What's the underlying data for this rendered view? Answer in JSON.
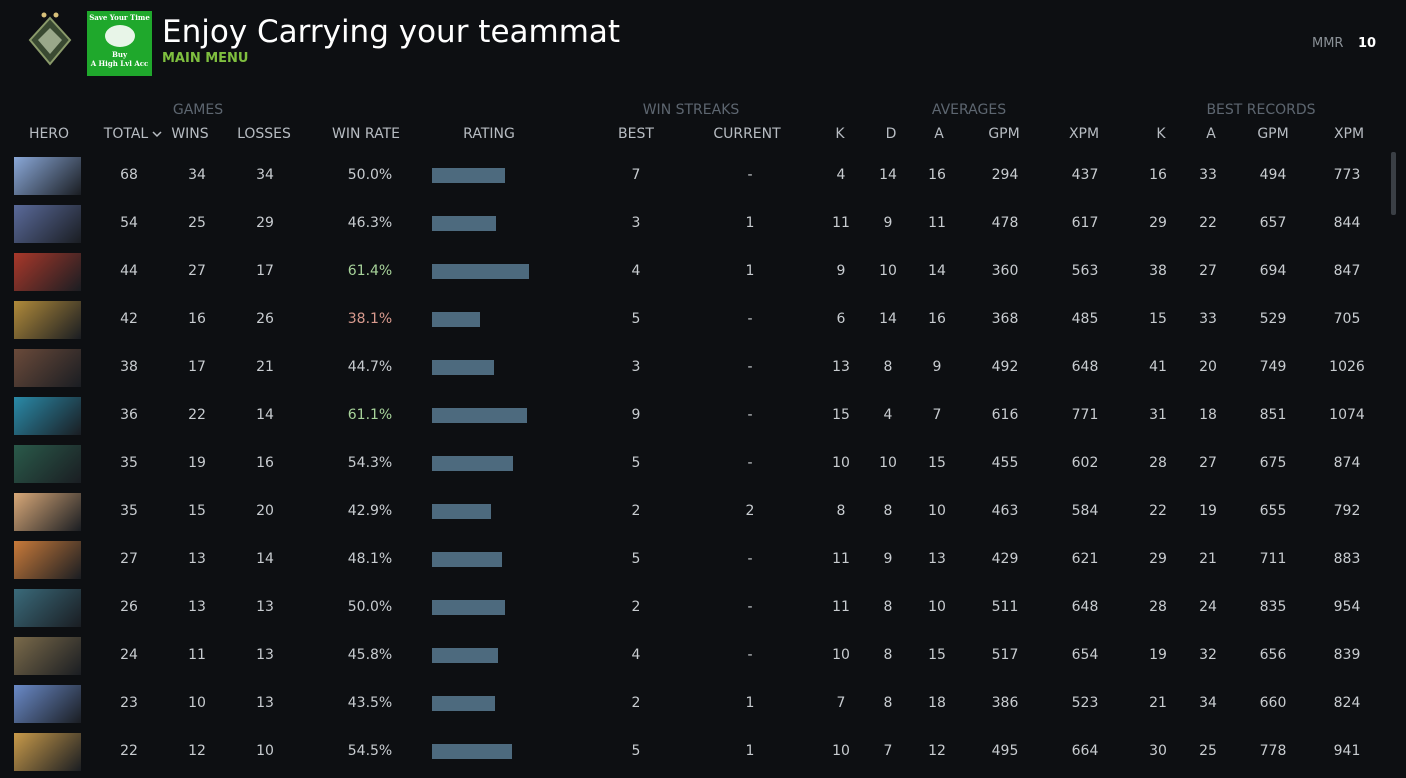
{
  "header": {
    "badge": {
      "line1": "Save Your Time",
      "line2": "Buy",
      "line3": "A High Lvl Acc"
    },
    "title": "Enjoy Carrying your teammat",
    "subtitle": "MAIN MENU",
    "mmr_label": "MMR",
    "mmr_value": "10"
  },
  "table": {
    "groups": [
      {
        "label": "GAMES",
        "x": 198
      },
      {
        "label": "WIN STREAKS",
        "x": 691
      },
      {
        "label": "AVERAGES",
        "x": 969
      },
      {
        "label": "BEST RECORDS",
        "x": 1261
      }
    ],
    "columns": [
      {
        "key": "hero",
        "label": "HERO"
      },
      {
        "key": "total",
        "label": "TOTAL"
      },
      {
        "key": "wins",
        "label": "WINS"
      },
      {
        "key": "losses",
        "label": "LOSSES"
      },
      {
        "key": "win_rate",
        "label": "WIN RATE"
      },
      {
        "key": "rating",
        "label": "RATING"
      },
      {
        "key": "best",
        "label": "BEST"
      },
      {
        "key": "current",
        "label": "CURRENT"
      },
      {
        "key": "k",
        "label": "K"
      },
      {
        "key": "d",
        "label": "D"
      },
      {
        "key": "a",
        "label": "A"
      },
      {
        "key": "gpm",
        "label": "GPM"
      },
      {
        "key": "xpm",
        "label": "XPM"
      },
      {
        "key": "best_k",
        "label": "K"
      },
      {
        "key": "best_a",
        "label": "A"
      },
      {
        "key": "best_gpm",
        "label": "GPM"
      },
      {
        "key": "best_xpm",
        "label": "XPM"
      }
    ],
    "rows": [
      {
        "total": 68,
        "wins": 34,
        "losses": 34,
        "win_rate": "50.0%",
        "win_rate_color": "#c8ccd0",
        "rating": 73,
        "best": 7,
        "current": "-",
        "k": 4,
        "d": 14,
        "a": 16,
        "gpm": 294,
        "xpm": 437,
        "best_k": 16,
        "best_a": 33,
        "best_gpm": 494,
        "best_xpm": 773
      },
      {
        "total": 54,
        "wins": 25,
        "losses": 29,
        "win_rate": "46.3%",
        "win_rate_color": "#c8ccd0",
        "rating": 64,
        "best": 3,
        "current": 1,
        "k": 11,
        "d": 9,
        "a": 11,
        "gpm": 478,
        "xpm": 617,
        "best_k": 29,
        "best_a": 22,
        "best_gpm": 657,
        "best_xpm": 844
      },
      {
        "total": 44,
        "wins": 27,
        "losses": 17,
        "win_rate": "61.4%",
        "win_rate_color": "#a7d39a",
        "rating": 97,
        "best": 4,
        "current": 1,
        "k": 9,
        "d": 10,
        "a": 14,
        "gpm": 360,
        "xpm": 563,
        "best_k": 38,
        "best_a": 27,
        "best_gpm": 694,
        "best_xpm": 847
      },
      {
        "total": 42,
        "wins": 16,
        "losses": 26,
        "win_rate": "38.1%",
        "win_rate_color": "#d89a8e",
        "rating": 48,
        "best": 5,
        "current": "-",
        "k": 6,
        "d": 14,
        "a": 16,
        "gpm": 368,
        "xpm": 485,
        "best_k": 15,
        "best_a": 33,
        "best_gpm": 529,
        "best_xpm": 705
      },
      {
        "total": 38,
        "wins": 17,
        "losses": 21,
        "win_rate": "44.7%",
        "win_rate_color": "#c8ccd0",
        "rating": 62,
        "best": 3,
        "current": "-",
        "k": 13,
        "d": 8,
        "a": 9,
        "gpm": 492,
        "xpm": 648,
        "best_k": 41,
        "best_a": 20,
        "best_gpm": 749,
        "best_xpm": 1026
      },
      {
        "total": 36,
        "wins": 22,
        "losses": 14,
        "win_rate": "61.1%",
        "win_rate_color": "#a7d39a",
        "rating": 95,
        "best": 9,
        "current": "-",
        "k": 15,
        "d": 4,
        "a": 7,
        "gpm": 616,
        "xpm": 771,
        "best_k": 31,
        "best_a": 18,
        "best_gpm": 851,
        "best_xpm": 1074
      },
      {
        "total": 35,
        "wins": 19,
        "losses": 16,
        "win_rate": "54.3%",
        "win_rate_color": "#c8ccd0",
        "rating": 81,
        "best": 5,
        "current": "-",
        "k": 10,
        "d": 10,
        "a": 15,
        "gpm": 455,
        "xpm": 602,
        "best_k": 28,
        "best_a": 27,
        "best_gpm": 675,
        "best_xpm": 874
      },
      {
        "total": 35,
        "wins": 15,
        "losses": 20,
        "win_rate": "42.9%",
        "win_rate_color": "#c8ccd0",
        "rating": 59,
        "best": 2,
        "current": 2,
        "k": 8,
        "d": 8,
        "a": 10,
        "gpm": 463,
        "xpm": 584,
        "best_k": 22,
        "best_a": 19,
        "best_gpm": 655,
        "best_xpm": 792
      },
      {
        "total": 27,
        "wins": 13,
        "losses": 14,
        "win_rate": "48.1%",
        "win_rate_color": "#c8ccd0",
        "rating": 70,
        "best": 5,
        "current": "-",
        "k": 11,
        "d": 9,
        "a": 13,
        "gpm": 429,
        "xpm": 621,
        "best_k": 29,
        "best_a": 21,
        "best_gpm": 711,
        "best_xpm": 883
      },
      {
        "total": 26,
        "wins": 13,
        "losses": 13,
        "win_rate": "50.0%",
        "win_rate_color": "#c8ccd0",
        "rating": 73,
        "best": 2,
        "current": "-",
        "k": 11,
        "d": 8,
        "a": 10,
        "gpm": 511,
        "xpm": 648,
        "best_k": 28,
        "best_a": 24,
        "best_gpm": 835,
        "best_xpm": 954
      },
      {
        "total": 24,
        "wins": 11,
        "losses": 13,
        "win_rate": "45.8%",
        "win_rate_color": "#c8ccd0",
        "rating": 66,
        "best": 4,
        "current": "-",
        "k": 10,
        "d": 8,
        "a": 15,
        "gpm": 517,
        "xpm": 654,
        "best_k": 19,
        "best_a": 32,
        "best_gpm": 656,
        "best_xpm": 839
      },
      {
        "total": 23,
        "wins": 10,
        "losses": 13,
        "win_rate": "43.5%",
        "win_rate_color": "#c8ccd0",
        "rating": 63,
        "best": 2,
        "current": 1,
        "k": 7,
        "d": 8,
        "a": 18,
        "gpm": 386,
        "xpm": 523,
        "best_k": 21,
        "best_a": 34,
        "best_gpm": 660,
        "best_xpm": 824
      },
      {
        "total": 22,
        "wins": 12,
        "losses": 10,
        "win_rate": "54.5%",
        "win_rate_color": "#c8ccd0",
        "rating": 80,
        "best": 5,
        "current": 1,
        "k": 10,
        "d": 7,
        "a": 12,
        "gpm": 495,
        "xpm": 664,
        "best_k": 30,
        "best_a": 25,
        "best_gpm": 778,
        "best_xpm": 941
      }
    ]
  }
}
